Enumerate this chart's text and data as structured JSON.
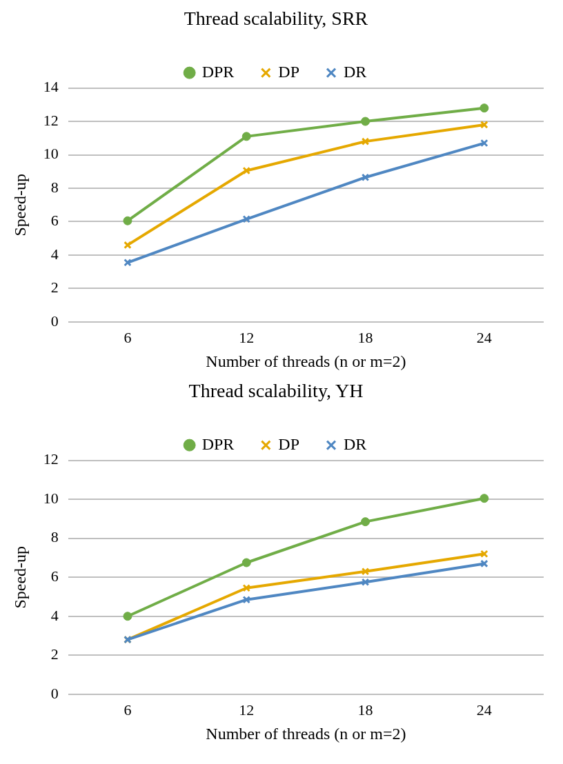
{
  "chart_data": [
    {
      "type": "line",
      "title": "Thread scalability, SRR",
      "xlabel": "Number of threads (n or m=2)",
      "ylabel": "Speed-up",
      "categories": [
        "6",
        "12",
        "18",
        "24"
      ],
      "ylim": [
        0,
        14
      ],
      "yticks": [
        0,
        2,
        4,
        6,
        8,
        10,
        12,
        14
      ],
      "grid": "y",
      "legend": "top",
      "line_style": "solid",
      "series": [
        {
          "name": "DPR",
          "color": "#70ad47",
          "marker": "circle",
          "values": [
            6.05,
            11.1,
            12.0,
            12.8
          ]
        },
        {
          "name": "DP",
          "color": "#e5a800",
          "marker": "cross",
          "values": [
            4.6,
            9.05,
            10.8,
            11.8
          ]
        },
        {
          "name": "DR",
          "color": "#4f87c2",
          "marker": "cross",
          "values": [
            3.55,
            6.15,
            8.65,
            10.7
          ]
        }
      ]
    },
    {
      "type": "line",
      "title": "Thread scalability, YH",
      "xlabel": "Number of threads (n or m=2)",
      "ylabel": "Speed-up",
      "categories": [
        "6",
        "12",
        "18",
        "24"
      ],
      "ylim": [
        0,
        12
      ],
      "yticks": [
        0,
        2,
        4,
        6,
        8,
        10,
        12
      ],
      "grid": "y",
      "legend": "top",
      "line_style": "solid",
      "series": [
        {
          "name": "DPR",
          "color": "#70ad47",
          "marker": "circle",
          "values": [
            4.0,
            6.75,
            8.85,
            10.05
          ]
        },
        {
          "name": "DP",
          "color": "#e5a800",
          "marker": "cross",
          "values": [
            2.8,
            5.45,
            6.3,
            7.2
          ]
        },
        {
          "name": "DR",
          "color": "#4f87c2",
          "marker": "cross",
          "values": [
            2.8,
            4.85,
            5.75,
            6.7
          ]
        }
      ]
    }
  ]
}
